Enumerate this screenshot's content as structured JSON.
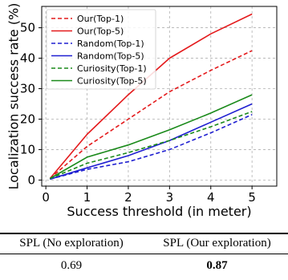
{
  "chart_data": {
    "type": "line",
    "title": "",
    "xlabel": "Success threshold (in meter)",
    "ylabel": "Localization success rate (%)",
    "x": [
      0.1,
      1,
      2,
      3,
      4,
      5
    ],
    "xlim": [
      -0.1,
      5.6
    ],
    "ylim": [
      -2,
      57
    ],
    "xticks": [
      0,
      1,
      2,
      3,
      4,
      5
    ],
    "yticks": [
      0,
      10,
      20,
      30,
      40,
      50
    ],
    "grid": true,
    "legend_position": "top-left",
    "series": [
      {
        "name": "Our(Top-1)",
        "color": "#e41a1c",
        "style": "dashed",
        "values": [
          0.5,
          11,
          20,
          29,
          36,
          42.5
        ]
      },
      {
        "name": "Our(Top-5)",
        "color": "#e41a1c",
        "style": "solid",
        "values": [
          0.5,
          15,
          28,
          40,
          48,
          54.5
        ]
      },
      {
        "name": "Random(Top-1)",
        "color": "#1f1fd1",
        "style": "dashed",
        "values": [
          0.3,
          3.5,
          6,
          10,
          15.5,
          21.5
        ]
      },
      {
        "name": "Random(Top-5)",
        "color": "#1f1fd1",
        "style": "solid",
        "values": [
          0.3,
          4,
          8,
          13,
          19,
          25
        ]
      },
      {
        "name": "Curiosity(Top-1)",
        "color": "#1a8a1a",
        "style": "dashed",
        "values": [
          0.5,
          5.5,
          9,
          13,
          17.5,
          22.5
        ]
      },
      {
        "name": "Curiosity(Top-5)",
        "color": "#1a8a1a",
        "style": "solid",
        "values": [
          0.5,
          7.5,
          11.5,
          16.5,
          22,
          28
        ]
      }
    ]
  },
  "table": {
    "headers": [
      "SPL (No exploration)",
      "SPL (Our exploration)"
    ],
    "values": [
      "0.69",
      "0.87"
    ]
  }
}
